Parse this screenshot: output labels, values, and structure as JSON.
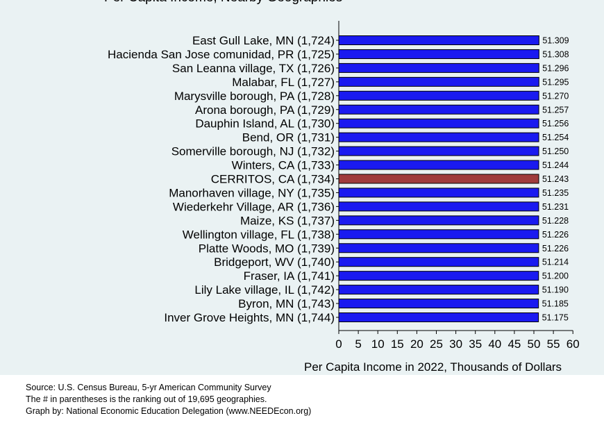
{
  "chart_data": {
    "type": "bar",
    "orientation": "horizontal",
    "title": "Per Capita Income, Nearby Geographies",
    "categories": [
      "East Gull Lake, MN (1,724)",
      "Hacienda San Jose comunidad, PR (1,725)",
      "San Leanna village, TX (1,726)",
      "Malabar, FL (1,727)",
      "Marysville borough, PA (1,728)",
      "Arona borough, PA (1,729)",
      "Dauphin Island, AL (1,730)",
      "Bend, OR (1,731)",
      "Somerville borough, NJ (1,732)",
      "Winters, CA (1,733)",
      "CERRITOS, CA (1,734)",
      "Manorhaven village, NY (1,735)",
      "Wiederkehr Village, AR (1,736)",
      "Maize, KS (1,737)",
      "Wellington village, FL (1,738)",
      "Platte Woods, MO (1,739)",
      "Bridgeport, WV (1,740)",
      "Fraser, IA (1,741)",
      "Lily Lake village, IL (1,742)",
      "Byron, MN (1,743)",
      "Inver Grove Heights, MN (1,744)"
    ],
    "values": [
      51.309,
      51.308,
      51.296,
      51.295,
      51.27,
      51.257,
      51.256,
      51.254,
      51.25,
      51.244,
      51.243,
      51.235,
      51.231,
      51.228,
      51.226,
      51.226,
      51.214,
      51.2,
      51.19,
      51.185,
      51.175
    ],
    "value_labels": [
      "51.309",
      "51.308",
      "51.296",
      "51.295",
      "51.270",
      "51.257",
      "51.256",
      "51.254",
      "51.250",
      "51.244",
      "51.243",
      "51.235",
      "51.231",
      "51.228",
      "51.226",
      "51.226",
      "51.214",
      "51.200",
      "51.190",
      "51.185",
      "51.175"
    ],
    "highlight_index": 10,
    "xlim": [
      0,
      60
    ],
    "xticks": [
      0,
      5,
      10,
      15,
      20,
      25,
      30,
      35,
      40,
      45,
      50,
      55,
      60
    ],
    "xticklabels": [
      "0",
      "5",
      "10",
      "15",
      "20",
      "25",
      "30",
      "35",
      "40",
      "45",
      "50",
      "55",
      "60"
    ],
    "xlabel": "Per Capita Income in 2022, Thousands of Dollars",
    "ylabel": "",
    "grid": false,
    "legend": "none",
    "colors": {
      "bar": "#1a1af0",
      "highlight": "#a03c3c",
      "bar_outline": "#000000",
      "plot_background": "#eaf2f3"
    }
  },
  "footer": {
    "source": "Source: U.S. Census Bureau, 5-yr American Community Survey",
    "note": "The # in parentheses is the ranking out of 19,695 geographies.",
    "credit": "Graph by: National Economic Education Delegation (www.NEEDEcon.org)"
  }
}
